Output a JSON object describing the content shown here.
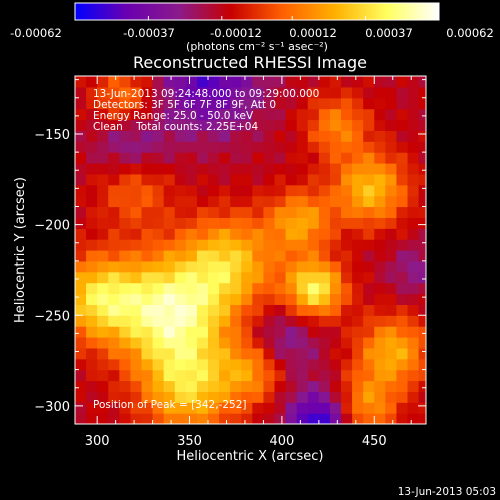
{
  "colorbar": {
    "tick_labels": [
      "-0.00062",
      "-0.00037",
      "-0.00012",
      "0.00012",
      "0.00037",
      "0.00062"
    ],
    "units_label": "(photons cm⁻² s⁻¹ asec⁻²)",
    "range": [
      -0.00062,
      0.00062
    ]
  },
  "footer": {
    "timestamp": "13-Jun-2013 05:03"
  },
  "chart_data": {
    "type": "heatmap",
    "title": "Reconstructed RHESSI Image",
    "xlabel": "Heliocentric X (arcsec)",
    "ylabel": "Heliocentric Y (arcsec)",
    "xlim": [
      288,
      478
    ],
    "ylim": [
      -310,
      -118
    ],
    "x_ticks": [
      300,
      350,
      400,
      450
    ],
    "y_ticks": [
      -150,
      -200,
      -250,
      -300
    ],
    "annotations": [
      "13-Jun-2013 09:24:48.000 to 09:29:00.000",
      "Detectors: 3F 5F 6F 7F 8F 9F, Att 0",
      "Energy Range: 25.0 - 50.0 keV",
      "Clean    Total counts: 2.25E+04"
    ],
    "peak_label": "Position of Peak = [342,-252]",
    "peak": [
      342,
      -252
    ],
    "colormap": [
      "#0000ff",
      "#6a00b0",
      "#8b1a8a",
      "#c80000",
      "#ff6000",
      "#ffb000",
      "#ffff60",
      "#ffffff"
    ],
    "sources": [
      {
        "x": 340,
        "y": -248,
        "amp": 0.00062,
        "sigma": 22
      },
      {
        "x": 300,
        "y": -240,
        "amp": 0.00045,
        "sigma": 16
      },
      {
        "x": 372,
        "y": -220,
        "amp": 0.0004,
        "sigma": 18
      },
      {
        "x": 350,
        "y": -290,
        "amp": 0.00042,
        "sigma": 18
      },
      {
        "x": 418,
        "y": -235,
        "amp": 0.00055,
        "sigma": 11
      },
      {
        "x": 448,
        "y": -180,
        "amp": 0.00042,
        "sigma": 14
      },
      {
        "x": 410,
        "y": -198,
        "amp": 0.00035,
        "sigma": 12
      },
      {
        "x": 460,
        "y": -270,
        "amp": 0.00038,
        "sigma": 14
      },
      {
        "x": 445,
        "y": -300,
        "amp": 0.00032,
        "sigma": 12
      },
      {
        "x": 385,
        "y": -280,
        "amp": 0.0003,
        "sigma": 12
      },
      {
        "x": 430,
        "y": -145,
        "amp": 0.00028,
        "sigma": 12
      },
      {
        "x": 315,
        "y": -130,
        "amp": 0.00028,
        "sigma": 12
      },
      {
        "x": 320,
        "y": -180,
        "amp": 0.00022,
        "sigma": 14
      },
      {
        "x": 360,
        "y": -120,
        "amp": -0.00035,
        "sigma": 20
      },
      {
        "x": 318,
        "y": -155,
        "amp": -0.0002,
        "sigma": 14
      },
      {
        "x": 420,
        "y": -308,
        "amp": -0.00045,
        "sigma": 12
      },
      {
        "x": 400,
        "y": -265,
        "amp": -0.0002,
        "sigma": 14
      },
      {
        "x": 472,
        "y": -225,
        "amp": -0.00015,
        "sigma": 10
      }
    ]
  }
}
